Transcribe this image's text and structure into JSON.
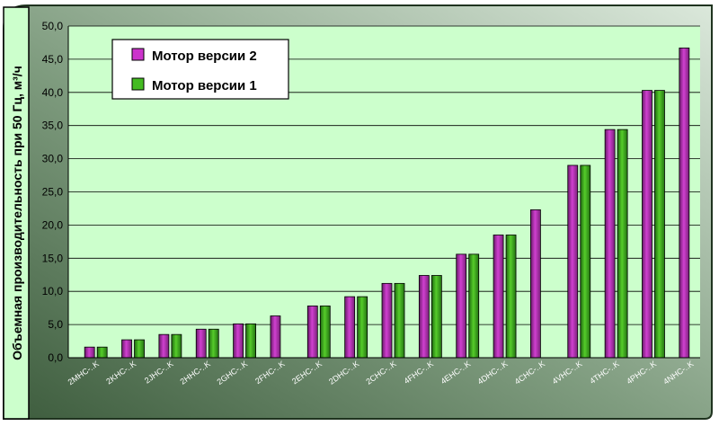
{
  "chart_data": {
    "type": "bar",
    "categories": [
      "2MHC-..K",
      "2KHC-..K",
      "2JHC-..K",
      "2HHC-..K",
      "2GHC-..K",
      "2FHC-..K",
      "2EHC-..K",
      "2DHC-..K",
      "2CHC-..K",
      "4FHC-..K",
      "4EHC-..K",
      "4DHC-..K",
      "4CHC-..K",
      "4VHC-..K",
      "4THC-..K",
      "4PHC-..K",
      "4NHC-..K"
    ],
    "series": [
      {
        "name": "Мотор версии 2",
        "color": "#cc33cc",
        "values": [
          1.6,
          2.7,
          3.5,
          4.3,
          5.1,
          6.3,
          7.8,
          9.2,
          11.2,
          12.4,
          15.6,
          18.5,
          22.3,
          29.0,
          34.4,
          40.3,
          46.7
        ]
      },
      {
        "name": "Мотор версии 1",
        "color": "#44bb22",
        "values": [
          1.6,
          2.7,
          3.5,
          4.3,
          5.1,
          null,
          7.8,
          9.2,
          11.2,
          12.4,
          15.6,
          18.5,
          null,
          29.0,
          34.4,
          40.3,
          null
        ]
      }
    ],
    "ylabel": "Объемная производительность при 50 Гц, м³/ч",
    "ylim": [
      0,
      50
    ],
    "yticks": [
      "0,0",
      "5,0",
      "10,0",
      "15,0",
      "20,0",
      "25,0",
      "30,0",
      "35,0",
      "40,0",
      "45,0",
      "50,0"
    ],
    "grid": true,
    "legend_position": "top-left",
    "colors": {
      "plot_bg": "#ccffcc",
      "frame_dark": "#3a5a3a",
      "frame_light": "#cfe0cf"
    }
  }
}
